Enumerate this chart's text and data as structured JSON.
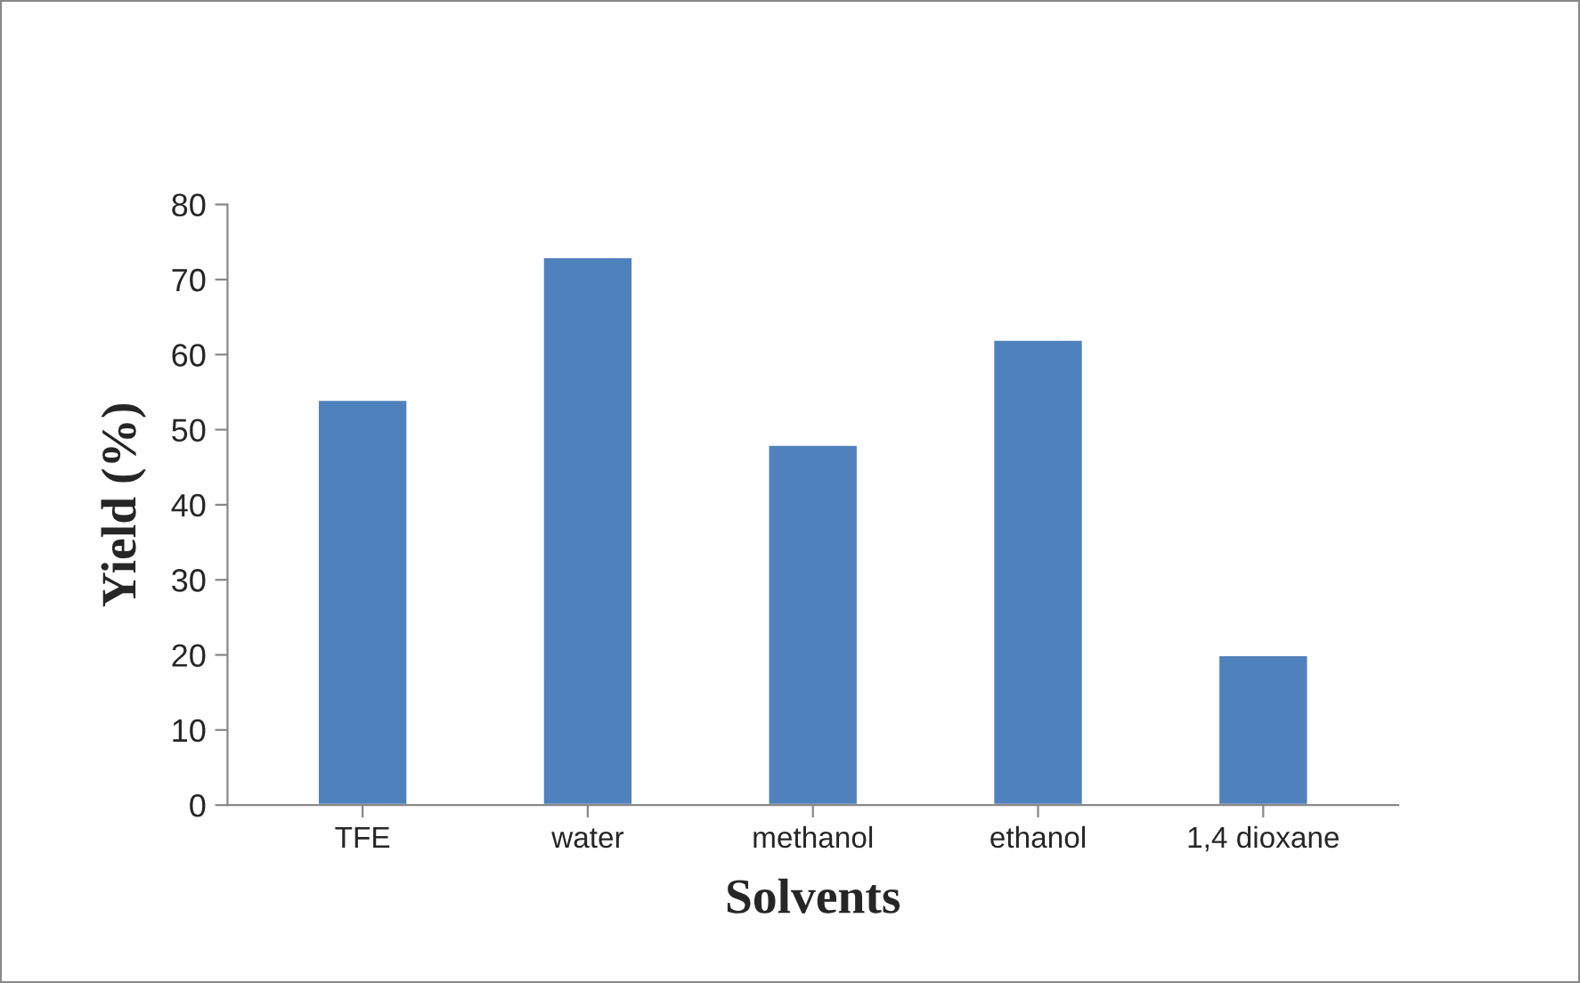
{
  "chart_data": {
    "type": "bar",
    "xlabel": "Solvents",
    "ylabel": "Yield (%)",
    "categories": [
      "TFE",
      "water",
      "methanol",
      "ethanol",
      "1,4 dioxane"
    ],
    "values": [
      54,
      73,
      48,
      62,
      20
    ],
    "color": "#4f81bd",
    "ylim": [
      0,
      80
    ],
    "yticks": [
      0,
      10,
      20,
      30,
      40,
      50,
      60,
      70,
      80
    ],
    "grid": false,
    "legend": false
  }
}
